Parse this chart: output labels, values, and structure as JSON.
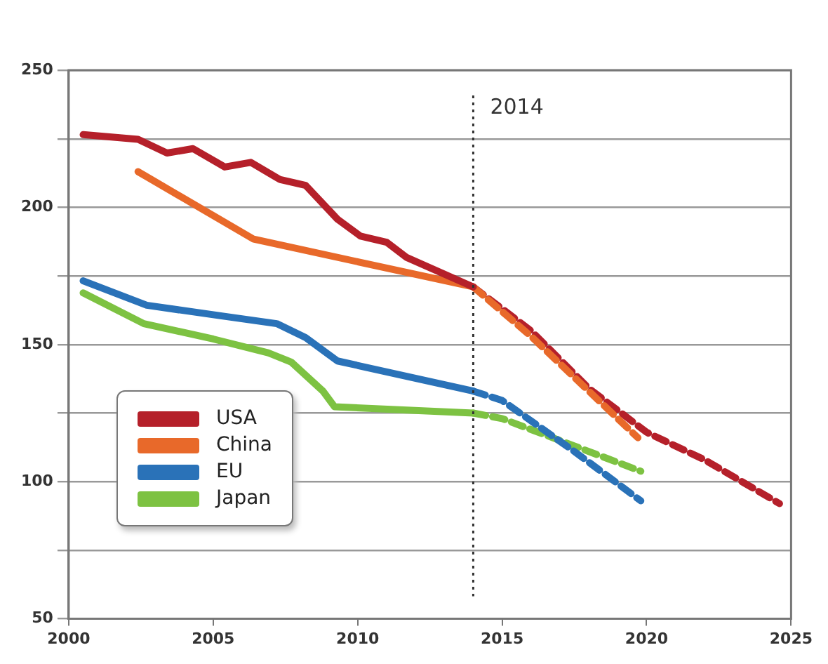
{
  "chart_data": {
    "type": "line",
    "xlim": [
      2000,
      2025
    ],
    "xticks": [
      2000,
      2005,
      2010,
      2015,
      2020,
      2025
    ],
    "ylim": [
      50,
      250
    ],
    "yticks": [
      50,
      {
        "value": 75,
        "label": null
      },
      100,
      {
        "value": 125,
        "label": null
      },
      150,
      {
        "value": 175,
        "label": null
      },
      200,
      {
        "value": 225,
        "label": null
      },
      250
    ],
    "grid": "y",
    "legend": "bottom left",
    "marker": "none",
    "ref_lines": [
      {
        "axis": "x",
        "value": 2014,
        "label": "2014",
        "line_style": "dotted",
        "color": "#333333"
      }
    ],
    "series": [
      {
        "name": "USA",
        "color": "#b5202a",
        "x": [
          2000.5,
          2002.4,
          2003.4,
          2004.3,
          2005.4,
          2006.3,
          2007.3,
          2008.2,
          2009.3,
          2010.1,
          2011,
          2011.7,
          2014
        ],
        "values": [
          226.5,
          224.8,
          219.8,
          221.4,
          214.7,
          216.4,
          210.2,
          208,
          195.7,
          189.5,
          187.3,
          181.7,
          171
        ]
      },
      {
        "name": "China",
        "color": "#e8692a",
        "x": [
          2002.4,
          2006.4,
          2014
        ],
        "values": [
          213,
          188.4,
          171
        ]
      },
      {
        "name": "EU",
        "color": "#2a72b8",
        "x": [
          2000.5,
          2002.7,
          2005.3,
          2007.2,
          2008.2,
          2009.3,
          2014
        ],
        "values": [
          173.2,
          164.3,
          160.4,
          157.6,
          152.5,
          144,
          133
        ]
      },
      {
        "name": "Japan",
        "color": "#7dc242",
        "x": [
          2000.5,
          2002.6,
          2005,
          2006.9,
          2007.7,
          2008.8,
          2009.2,
          2014
        ],
        "values": [
          168.8,
          157.6,
          152,
          147,
          143.6,
          133,
          127.3,
          125
        ]
      },
      {
        "color": "#e8692a",
        "line_style": "dashed",
        "x": [
          2014,
          2016,
          2018,
          2019.7
        ],
        "values": [
          171,
          153,
          133,
          116
        ]
      },
      {
        "color": "#b5202a",
        "line_style": "dashed",
        "x": [
          2014,
          2016,
          2018,
          2020,
          2022,
          2024.6
        ],
        "values": [
          171,
          155,
          134,
          118,
          108,
          92
        ]
      },
      {
        "color": "#2a72b8",
        "line_style": "dashed",
        "x": [
          2014,
          2015,
          2017.5,
          2019.8
        ],
        "values": [
          133,
          129.6,
          111,
          93
        ]
      },
      {
        "color": "#7dc242",
        "line_style": "dashed",
        "x": [
          2014,
          2015,
          2017.5,
          2019.8
        ],
        "values": [
          125,
          123,
          113,
          103.8
        ]
      }
    ]
  }
}
